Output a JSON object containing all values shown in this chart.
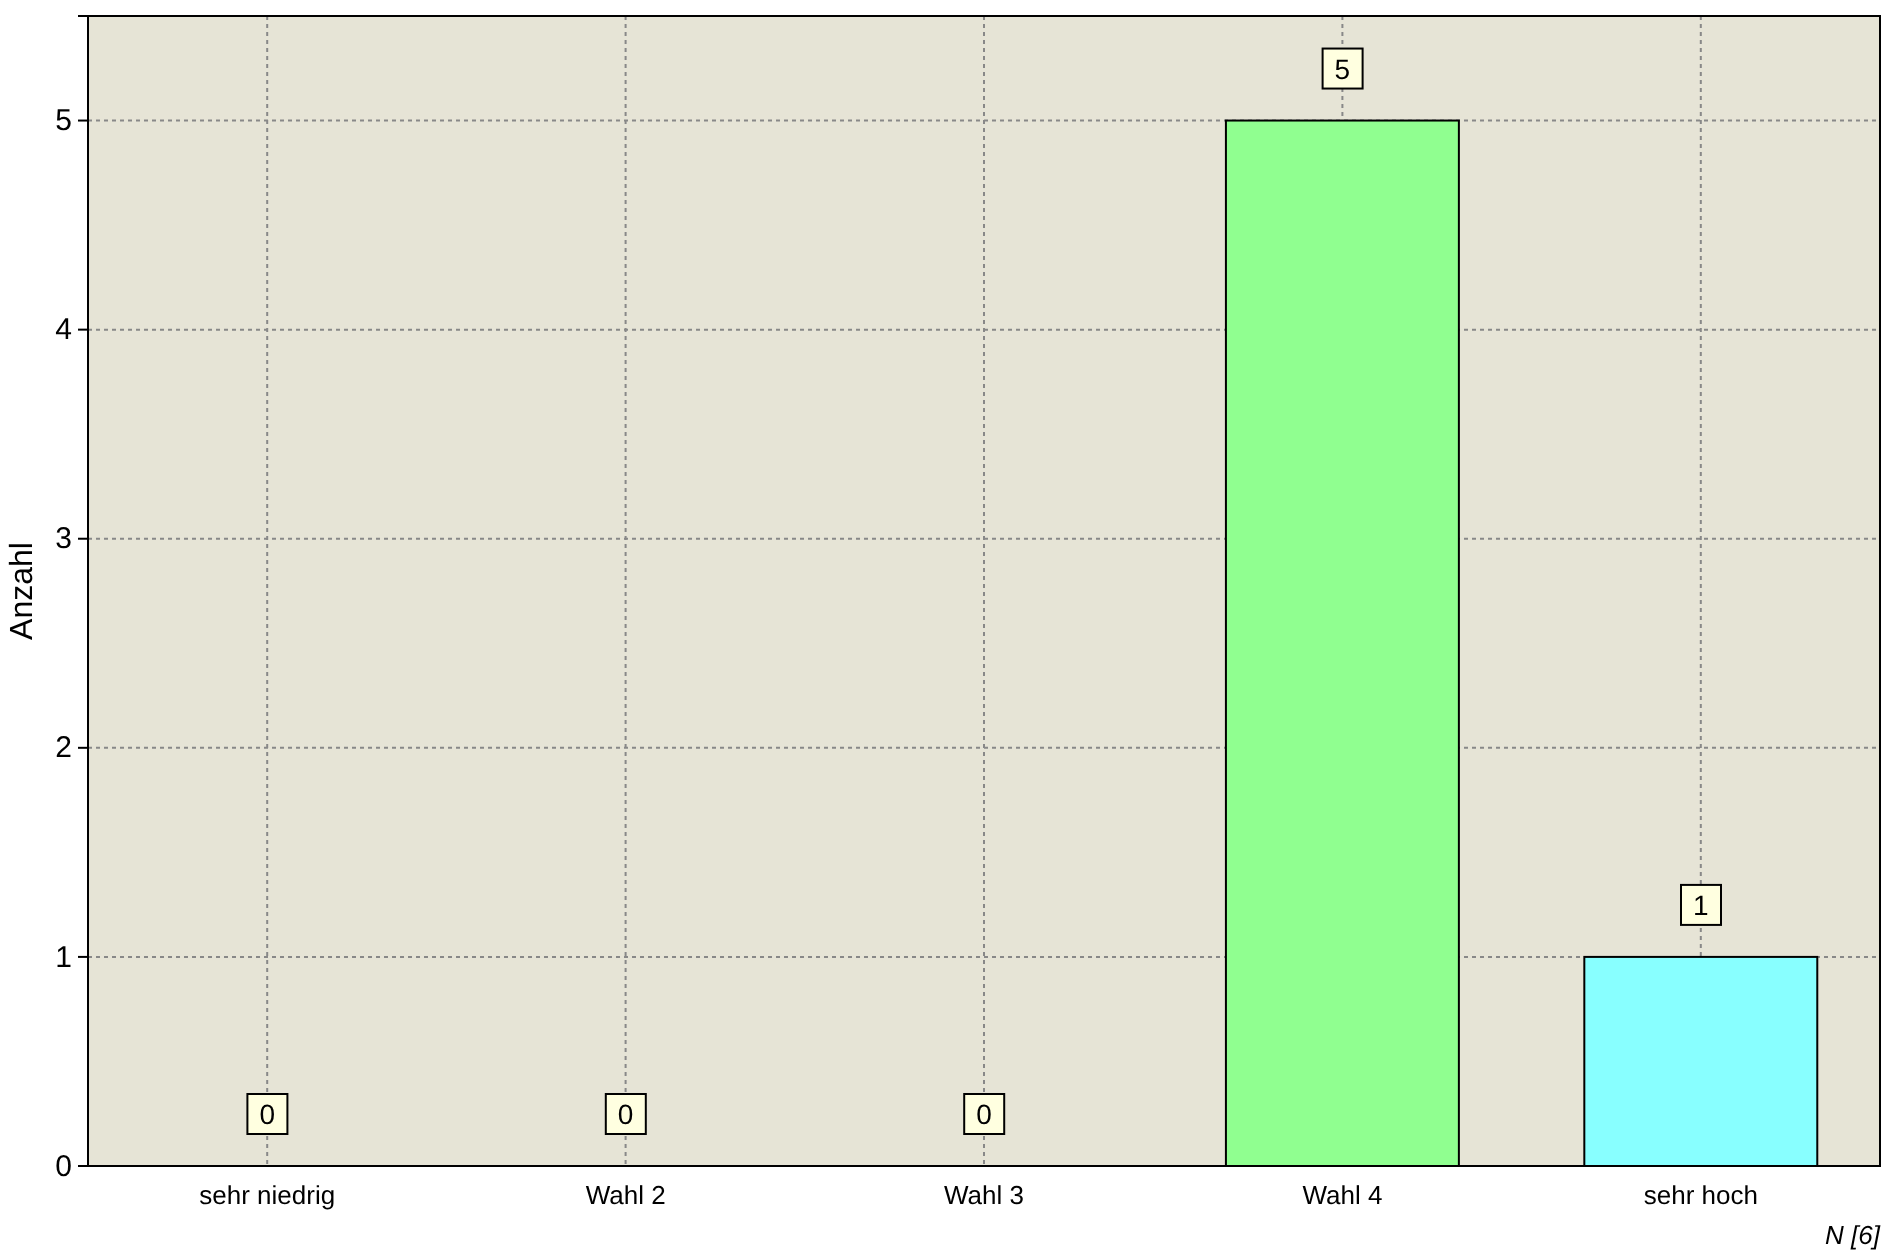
{
  "chart_data": {
    "type": "bar",
    "ylabel": "Anzahl",
    "categories": [
      "sehr niedrig",
      "Wahl 2",
      "Wahl 3",
      "Wahl 4",
      "sehr hoch"
    ],
    "values": [
      0,
      0,
      0,
      5,
      1
    ],
    "colors": [
      "#ff9090",
      "#ffc890",
      "#ffff90",
      "#90ff90",
      "#88ffff"
    ],
    "ylim": [
      0,
      5.5
    ],
    "yticks": [
      0,
      1,
      2,
      3,
      4,
      5
    ],
    "grid": true,
    "data_labels": true,
    "annotations": [
      "N [6]"
    ]
  }
}
